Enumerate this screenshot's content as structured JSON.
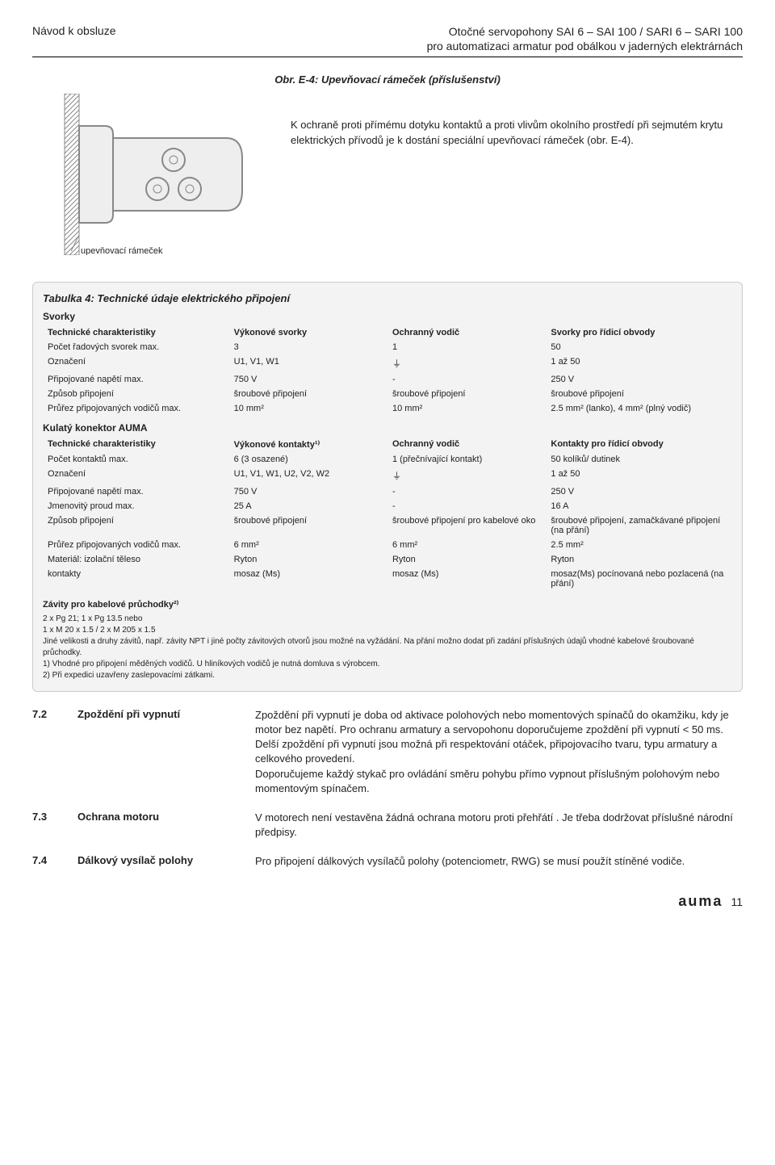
{
  "header": {
    "left": "Návod k obsluze",
    "right_line1": "Otočné servopohony SAI 6 – SAI 100 / SARI 6 – SARI 100",
    "right_line2": "pro automatizaci armatur pod obálkou v jaderných elektrárnách"
  },
  "figure": {
    "caption": "Obr. E-4: Upevňovací rámeček (příslušenství)",
    "description": "K ochraně proti přímému dotyku kontaktů a proti vlivům okolního prostředí při sejmutém krytu elektrických přívodů je k dostání speciální upevňovací rámeček (obr. E-4).",
    "label": "upevňovací rámeček",
    "stroke": "#888888",
    "fill": "#eeeeee"
  },
  "table": {
    "title": "Tabulka 4: Technické údaje elektrického připojení",
    "section1_head": "Svorky",
    "columns1": [
      "Technické charakteristiky",
      "Výkonové svorky",
      "Ochranný vodič",
      "Svorky pro řídicí obvody"
    ],
    "rows1": [
      [
        "Počet řadových svorek max.",
        "3",
        "1",
        "50"
      ],
      [
        "Označení",
        "U1, V1, W1",
        "⏚",
        "1 až 50"
      ],
      [
        "Připojované napětí max.",
        "750 V",
        "-",
        "250 V"
      ],
      [
        "Způsob připojení",
        "šroubové připojení",
        "šroubové připojení",
        "šroubové připojení"
      ],
      [
        "Průřez připojovaných vodičů max.",
        "10 mm²",
        "10 mm²",
        "2.5 mm² (lanko), 4 mm² (plný vodič)"
      ]
    ],
    "section2_head": "Kulatý konektor AUMA",
    "columns2": [
      "Technické charakteristiky",
      "Výkonové kontakty¹⁾",
      "Ochranný vodič",
      "Kontakty pro řídicí obvody"
    ],
    "rows2": [
      [
        "Počet kontaktů max.",
        "6 (3 osazené)",
        "1 (přečnívající kontakt)",
        "50 kolíků/ dutinek"
      ],
      [
        "Označení",
        "U1, V1, W1, U2, V2, W2",
        "⏚",
        "1 až 50"
      ],
      [
        "Připojované napětí max.",
        "750 V",
        "-",
        "250 V"
      ],
      [
        "Jmenovitý proud max.",
        "25 A",
        "-",
        "16 A"
      ],
      [
        "Způsob připojení",
        "šroubové připojení",
        "šroubové připojení pro kabelové oko",
        "šroubové připojení, zamačkávané připojení (na přání)"
      ],
      [
        "Průřez připojovaných vodičů max.",
        "6 mm²",
        "6 mm²",
        "2.5 mm²"
      ],
      [
        "Materiál: izolační těleso",
        "Ryton",
        "Ryton",
        "Ryton"
      ],
      [
        "kontakty",
        "mosaz (Ms)",
        "mosaz (Ms)",
        "mosaz(Ms) pocínovaná nebo pozlacená (na přání)"
      ]
    ],
    "notes_head": "Závity pro kabelové průchodky²⁾",
    "notes_line1": "2 x Pg 21; 1 x Pg 13.5 nebo",
    "notes_line2": "1 x M 20 x 1.5 / 2 x M 205 x 1.5",
    "notes_body": "Jiné velikosti a druhy závitů, např. závity NPT i jiné počty závitových otvorů jsou možné na vyžádání. Na přání možno dodat při zadání příslušných údajů vhodné kabelové šroubované průchodky.",
    "footnote1": "1) Vhodné pro připojení měděných vodičů. U hliníkových vodičů je nutná domluva s výrobcem.",
    "footnote2": "2) Při expedici uzavřeny zaslepovacími zátkami."
  },
  "sections": [
    {
      "num": "7.2",
      "title": "Zpoždění při vypnutí",
      "body": "Zpoždění při vypnutí je doba od aktivace polohových nebo momentových spínačů do okamžiku, kdy je motor bez napětí. Pro ochranu armatury a servopohonu doporučujeme zpoždění při vypnutí < 50 ms. Delší zpoždění při vypnutí jsou možná při respektování otáček, připojovacího tvaru, typu armatury a celkového provedení.\nDoporučujeme každý stykač pro ovládání směru pohybu přímo vypnout příslušným polohovým nebo momentovým spínačem."
    },
    {
      "num": "7.3",
      "title": "Ochrana motoru",
      "body": "V motorech není vestavěna žádná ochrana motoru proti přehřátí . Je třeba dodržovat příslušné národní předpisy."
    },
    {
      "num": "7.4",
      "title": "Dálkový vysílač polohy",
      "body": "Pro připojení dálkových vysílačů polohy (potenciometr, RWG) se musí použít stíněné vodiče."
    }
  ],
  "footer": {
    "brand": "auma",
    "page": "11"
  }
}
